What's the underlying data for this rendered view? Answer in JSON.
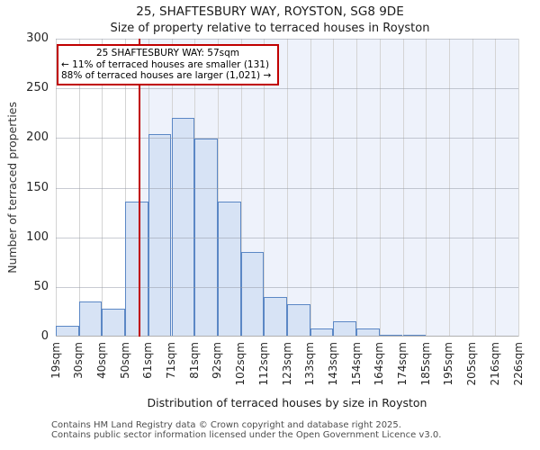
{
  "page": {
    "title": "25, SHAFTESBURY WAY, ROYSTON, SG8 9DE",
    "subtitle": "Size of property relative to terraced houses in Royston",
    "footer_line1": "Contains HM Land Registry data © Crown copyright and database right 2025.",
    "footer_line2": "Contains public sector information licensed under the Open Government Licence v3.0."
  },
  "annotation": {
    "line1": "25 SHAFTESBURY WAY: 57sqm",
    "line2": "← 11% of terraced houses are smaller (131)",
    "line3": "88% of terraced houses are larger (1,021) →"
  },
  "chart_data": {
    "type": "bar",
    "title": "25, SHAFTESBURY WAY, ROYSTON, SG8 9DE",
    "subtitle": "Size of property relative to terraced houses in Royston",
    "xlabel": "Distribution of terraced houses by size in Royston",
    "ylabel": "Number of terraced properties",
    "bin_edges_sqm": [
      19,
      30,
      40,
      50,
      61,
      71,
      81,
      92,
      102,
      112,
      123,
      133,
      143,
      154,
      164,
      174,
      185,
      195,
      205,
      216,
      226
    ],
    "tick_labels": [
      "19sqm",
      "30sqm",
      "40sqm",
      "50sqm",
      "61sqm",
      "71sqm",
      "81sqm",
      "92sqm",
      "102sqm",
      "112sqm",
      "123sqm",
      "133sqm",
      "143sqm",
      "154sqm",
      "164sqm",
      "174sqm",
      "185sqm",
      "195sqm",
      "205sqm",
      "216sqm",
      "226sqm"
    ],
    "values": [
      11,
      35,
      28,
      136,
      204,
      220,
      199,
      136,
      85,
      40,
      33,
      8,
      15,
      8,
      2,
      2,
      1,
      0,
      1,
      1
    ],
    "ylim": [
      0,
      300
    ],
    "yticks": [
      0,
      50,
      100,
      150,
      200,
      250,
      300
    ],
    "marker_sqm": 57,
    "grid": true,
    "legend": "none",
    "colors": {
      "bar_fill": "#d7e3f5",
      "bar_edge": "#5b87c5",
      "marker_line": "#c00000",
      "annotation_border": "#c00000",
      "shade_right_of_marker": "#eef2fb",
      "gridline": "#d4d4d4",
      "gridline_over_bars": "rgba(145,152,165,0.5)",
      "axis_line": "#b0b0b0"
    }
  }
}
